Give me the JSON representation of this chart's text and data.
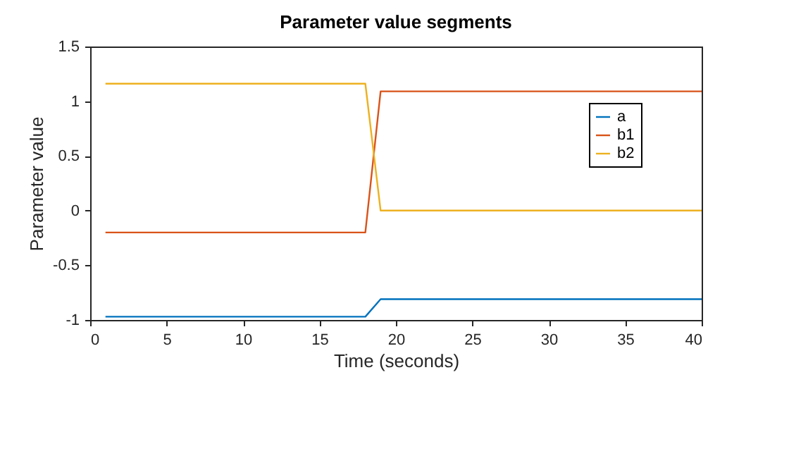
{
  "chart_data": {
    "type": "line",
    "title": "Parameter value segments",
    "xlabel": "Time (seconds)",
    "ylabel": "Parameter value",
    "xlim": [
      0,
      40
    ],
    "xticks": [
      0,
      5,
      10,
      15,
      20,
      25,
      30,
      35,
      40
    ],
    "ylim": [
      -1,
      1.5
    ],
    "yticks": [
      -1,
      -0.5,
      0,
      0.5,
      1,
      1.5
    ],
    "legend": "right",
    "grid": false,
    "series": [
      {
        "name": "a",
        "color": "#0072bd",
        "x": [
          1,
          18,
          19,
          40
        ],
        "values": [
          -0.97,
          -0.97,
          -0.81,
          -0.81
        ]
      },
      {
        "name": "b1",
        "color": "#d95319",
        "x": [
          1,
          18,
          19,
          40
        ],
        "values": [
          -0.2,
          -0.2,
          1.09,
          1.09
        ]
      },
      {
        "name": "b2",
        "color": "#edb120",
        "x": [
          1,
          18,
          19,
          40
        ],
        "values": [
          1.16,
          1.16,
          0,
          0
        ]
      }
    ]
  }
}
